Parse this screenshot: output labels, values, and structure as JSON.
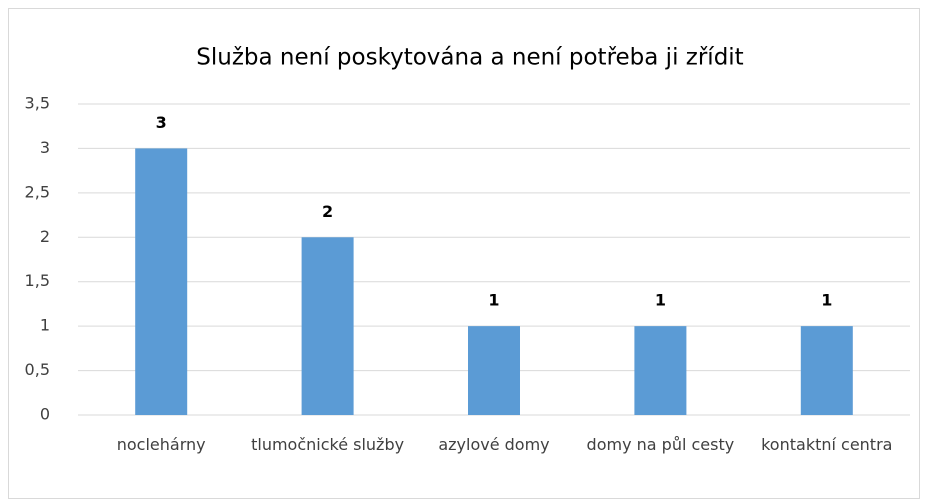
{
  "chart_data": {
    "type": "bar",
    "title": "Služba není poskytována a není potřeba ji zřídit",
    "categories": [
      "noclehárny",
      "tlumočnické služby",
      "azylové domy",
      "domy na půl cesty",
      "kontaktní centra"
    ],
    "values": [
      3,
      2,
      1,
      1,
      1
    ],
    "color": "#5b9bd5",
    "ylim": [
      0,
      3.5
    ],
    "yticks": [
      0,
      {
        "value": 0.5,
        "label": "0,5"
      },
      1,
      {
        "value": 1.5,
        "label": "1,5"
      },
      2,
      {
        "value": 2.5,
        "label": "2,5"
      },
      3,
      {
        "value": 3.5,
        "label": "3,5"
      }
    ],
    "grid": true
  }
}
